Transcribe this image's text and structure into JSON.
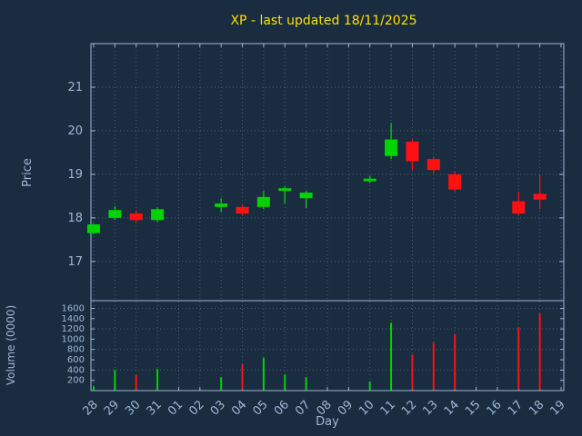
{
  "colors": {
    "background": "#1a2c40",
    "up": "#00d400",
    "down": "#ff1111",
    "title": "#ffe100",
    "axis": "#9db8d6",
    "grid": "#46617c"
  },
  "chart_data": {
    "type": "candlestick",
    "title": "XP - last updated 18/11/2025",
    "xlabel": "Day",
    "ylabel": "Price",
    "ylabel2": "Volume (0000)",
    "categories": [
      "28",
      "29",
      "30",
      "31",
      "01",
      "02",
      "03",
      "04",
      "05",
      "06",
      "07",
      "08",
      "09",
      "10",
      "11",
      "12",
      "13",
      "14",
      "15",
      "16",
      "17",
      "18",
      "19"
    ],
    "price_ticks": [
      17,
      18,
      19,
      20,
      21
    ],
    "volume_ticks": [
      200,
      400,
      600,
      800,
      1000,
      1200,
      1400,
      1600
    ],
    "price_ylim": [
      16.1,
      22.0
    ],
    "volume_ylim": [
      0,
      1750
    ],
    "grid": true,
    "legend": "none",
    "candles": [
      {
        "day": "28",
        "open": 17.65,
        "high": 17.87,
        "low": 17.62,
        "close": 17.85,
        "volume": 80
      },
      {
        "day": "29",
        "open": 18.0,
        "high": 18.27,
        "low": 17.95,
        "close": 18.18,
        "volume": 400
      },
      {
        "day": "30",
        "open": 18.1,
        "high": 18.16,
        "low": 17.88,
        "close": 17.95,
        "volume": 300
      },
      {
        "day": "31",
        "open": 17.95,
        "high": 18.24,
        "low": 17.9,
        "close": 18.2,
        "volume": 420
      },
      {
        "day": "03",
        "open": 18.25,
        "high": 18.45,
        "low": 18.13,
        "close": 18.33,
        "volume": 260
      },
      {
        "day": "04",
        "open": 18.25,
        "high": 18.3,
        "low": 18.05,
        "close": 18.1,
        "volume": 510
      },
      {
        "day": "05",
        "open": 18.25,
        "high": 18.62,
        "low": 18.2,
        "close": 18.48,
        "volume": 640
      },
      {
        "day": "06",
        "open": 18.62,
        "high": 18.72,
        "low": 18.33,
        "close": 18.68,
        "volume": 310
      },
      {
        "day": "07",
        "open": 18.45,
        "high": 18.62,
        "low": 18.22,
        "close": 18.58,
        "volume": 260
      },
      {
        "day": "10",
        "open": 18.84,
        "high": 18.96,
        "low": 18.8,
        "close": 18.9,
        "volume": 180
      },
      {
        "day": "11",
        "open": 19.42,
        "high": 20.18,
        "low": 19.35,
        "close": 19.8,
        "volume": 1320
      },
      {
        "day": "12",
        "open": 19.75,
        "high": 19.8,
        "low": 19.1,
        "close": 19.3,
        "volume": 700
      },
      {
        "day": "13",
        "open": 19.35,
        "high": 19.4,
        "low": 19.02,
        "close": 19.1,
        "volume": 930
      },
      {
        "day": "14",
        "open": 19.0,
        "high": 19.06,
        "low": 18.6,
        "close": 18.65,
        "volume": 1100
      },
      {
        "day": "17",
        "open": 18.38,
        "high": 18.6,
        "low": 18.05,
        "close": 18.1,
        "volume": 1230
      },
      {
        "day": "18",
        "open": 18.55,
        "high": 18.98,
        "low": 18.2,
        "close": 18.42,
        "volume": 1500
      }
    ]
  }
}
